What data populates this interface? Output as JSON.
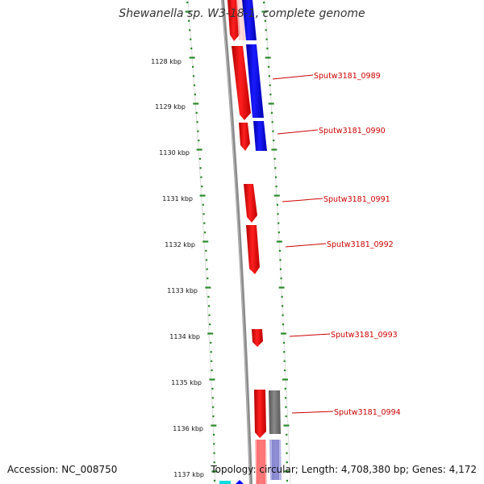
{
  "header": {
    "title": "Shewanella sp. W3-18-1, complete genome"
  },
  "footer": {
    "accession": "Accession: NC_008750",
    "summary": "Topology: circular; Length: 4,708,380 bp; Genes: 4,172"
  },
  "colors": {
    "forward_gene": "#ff0000",
    "reverse_gene": "#0000ff",
    "other_gene": "#777777",
    "tick": "#2a8a2a",
    "label": "#cc0000",
    "backbone": "#888888"
  },
  "ruler": {
    "labels": [
      "1128 kbp",
      "1129 kbp",
      "1130 kbp",
      "1131 kbp",
      "1132 kbp",
      "1133 kbp",
      "1134 kbp",
      "1135 kbp",
      "1136 kbp",
      "1137 kbp"
    ]
  },
  "genes": [
    {
      "label": "Sputw3181_0989"
    },
    {
      "label": "Sputw3181_0990"
    },
    {
      "label": "Sputw3181_0991"
    },
    {
      "label": "Sputw3181_0992"
    },
    {
      "label": "Sputw3181_0993"
    },
    {
      "label": "Sputw3181_0994"
    }
  ]
}
